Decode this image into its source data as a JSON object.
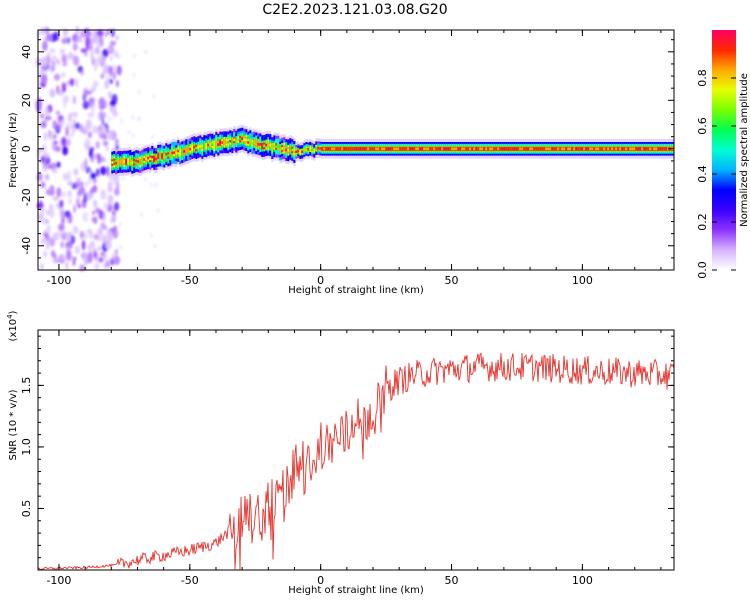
{
  "title": "C2E2.2023.121.03.08.G20",
  "chart_data": [
    {
      "type": "heatmap",
      "xlabel": "Height of straight line (km)",
      "ylabel": "Frequency (Hz)",
      "xlim": [
        -108,
        135
      ],
      "ylim": [
        -50,
        49
      ],
      "xticks": [
        -100,
        -50,
        0,
        50,
        100
      ],
      "yticks": [
        -40,
        -20,
        0,
        20,
        40
      ],
      "colorbar": {
        "label": "Normalized spectral amplitude",
        "range": [
          0,
          1
        ],
        "ticks": [
          "0.0",
          "0.2",
          "0.4",
          "0.6",
          "0.8"
        ],
        "colors": [
          "#ffffff",
          "#d6b3ff",
          "#8c33ff",
          "#3a00ff",
          "#0000ff",
          "#00b4ff",
          "#00ffd2",
          "#00ff50",
          "#78ff00",
          "#e6ff00",
          "#ffaa00",
          "#ff2800",
          "#ff0064"
        ]
      },
      "ridge": {
        "x": [
          -80,
          -70,
          -60,
          -50,
          -40,
          -35,
          -30,
          -25,
          -20,
          -15,
          -10,
          0,
          10,
          20,
          30,
          50,
          80,
          100,
          120,
          135
        ],
        "freq": [
          -6,
          -5,
          -3,
          0,
          2,
          3,
          4,
          2,
          1,
          0,
          -1,
          0,
          0,
          0,
          0,
          0,
          0,
          0,
          0,
          0
        ]
      },
      "noise_region": {
        "x": [
          -108,
          -77
        ],
        "freq": [
          -50,
          49
        ]
      }
    },
    {
      "type": "line",
      "xlabel": "Height of straight line (km)",
      "ylabel": "SNR (10 * v/v)",
      "multiplier": "(x10",
      "multiplier_exp": "4",
      "multiplier_close": ")",
      "xlim": [
        -108,
        135
      ],
      "ylim": [
        0,
        1.95
      ],
      "xticks": [
        -100,
        -50,
        0,
        50,
        100
      ],
      "yticks": [
        "0.5",
        "1.0",
        "1.5"
      ],
      "color": "#e8322c",
      "profile": {
        "x": [
          -108,
          -90,
          -78,
          -70,
          -60,
          -50,
          -40,
          -33,
          -28,
          -22,
          -18,
          -10,
          0,
          10,
          20,
          25,
          28,
          35,
          45,
          60,
          80,
          100,
          120,
          135
        ],
        "y": [
          0.01,
          0.02,
          0.04,
          0.08,
          0.12,
          0.16,
          0.22,
          0.35,
          0.4,
          0.45,
          0.55,
          0.8,
          1.0,
          1.1,
          1.3,
          1.45,
          1.52,
          1.58,
          1.62,
          1.65,
          1.65,
          1.62,
          1.6,
          1.58
        ]
      }
    }
  ]
}
